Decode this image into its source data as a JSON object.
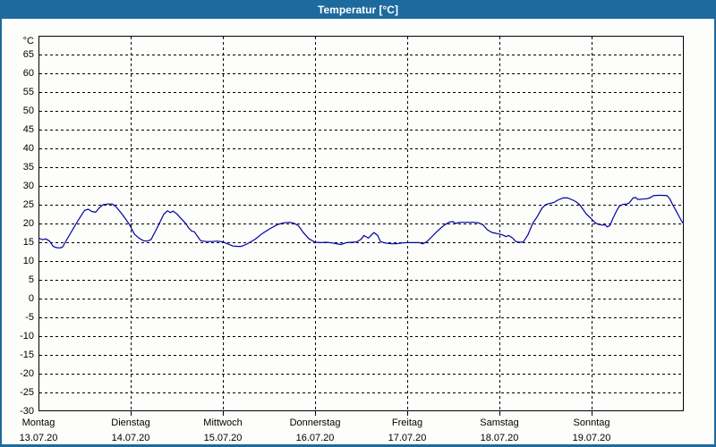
{
  "window": {
    "title": "Temperatur [°C]",
    "titlebar_color": "#1d6a9e",
    "border_color": "#1d6a9e",
    "background": "#fdfdfb"
  },
  "chart_data": {
    "type": "line",
    "title": "Temperatur [°C]",
    "grid": {
      "dashed": true,
      "color": "#000000",
      "shown": true
    },
    "legend_position": "none",
    "y_axis": {
      "unit_label": "°C",
      "min": -30,
      "max": 70,
      "ticks": [
        65,
        60,
        55,
        50,
        45,
        40,
        35,
        30,
        25,
        20,
        15,
        10,
        5,
        0,
        -5,
        -10,
        -15,
        -20,
        -25,
        -30
      ]
    },
    "x_axis": {
      "min_days": 0,
      "max_days": 7,
      "days": [
        {
          "name": "Montag",
          "date": "13.07.20"
        },
        {
          "name": "Dienstag",
          "date": "14.07.20"
        },
        {
          "name": "Mittwoch",
          "date": "15.07.20"
        },
        {
          "name": "Donnerstag",
          "date": "16.07.20"
        },
        {
          "name": "Freitag",
          "date": "17.07.20"
        },
        {
          "name": "Samstag",
          "date": "18.07.20"
        },
        {
          "name": "Sonntag",
          "date": "19.07.20"
        }
      ]
    },
    "series": [
      {
        "name": "Temperatur",
        "color": "#0000a0",
        "points": [
          [
            0.0,
            16.2
          ],
          [
            0.04,
            15.7
          ],
          [
            0.08,
            15.9
          ],
          [
            0.12,
            15.3
          ],
          [
            0.16,
            13.9
          ],
          [
            0.19,
            13.6
          ],
          [
            0.23,
            13.5
          ],
          [
            0.26,
            13.7
          ],
          [
            0.29,
            15.0
          ],
          [
            0.35,
            17.5
          ],
          [
            0.41,
            20.0
          ],
          [
            0.46,
            22.0
          ],
          [
            0.5,
            23.5
          ],
          [
            0.54,
            23.8
          ],
          [
            0.58,
            23.2
          ],
          [
            0.62,
            23.0
          ],
          [
            0.66,
            24.2
          ],
          [
            0.7,
            25.0
          ],
          [
            0.75,
            25.2
          ],
          [
            0.8,
            25.2
          ],
          [
            0.84,
            24.5
          ],
          [
            0.89,
            23.0
          ],
          [
            0.94,
            21.4
          ],
          [
            0.99,
            19.6
          ],
          [
            1.04,
            17.2
          ],
          [
            1.09,
            16.1
          ],
          [
            1.14,
            15.4
          ],
          [
            1.18,
            15.3
          ],
          [
            1.22,
            15.7
          ],
          [
            1.27,
            18.0
          ],
          [
            1.32,
            20.5
          ],
          [
            1.36,
            22.5
          ],
          [
            1.4,
            23.4
          ],
          [
            1.43,
            22.9
          ],
          [
            1.46,
            23.3
          ],
          [
            1.5,
            22.6
          ],
          [
            1.54,
            21.5
          ],
          [
            1.59,
            20.2
          ],
          [
            1.63,
            18.8
          ],
          [
            1.66,
            18.0
          ],
          [
            1.69,
            17.8
          ],
          [
            1.73,
            16.4
          ],
          [
            1.76,
            15.4
          ],
          [
            1.82,
            15.2
          ],
          [
            1.88,
            15.2
          ],
          [
            1.94,
            15.3
          ],
          [
            2.0,
            15.1
          ],
          [
            2.05,
            14.6
          ],
          [
            2.11,
            14.0
          ],
          [
            2.16,
            13.9
          ],
          [
            2.2,
            13.9
          ],
          [
            2.25,
            14.4
          ],
          [
            2.3,
            15.1
          ],
          [
            2.35,
            15.8
          ],
          [
            2.42,
            17.2
          ],
          [
            2.51,
            18.6
          ],
          [
            2.59,
            19.7
          ],
          [
            2.66,
            20.2
          ],
          [
            2.72,
            20.3
          ],
          [
            2.77,
            20.1
          ],
          [
            2.82,
            19.4
          ],
          [
            2.87,
            17.7
          ],
          [
            2.93,
            16.0
          ],
          [
            3.0,
            15.0
          ],
          [
            3.06,
            14.9
          ],
          [
            3.13,
            15.0
          ],
          [
            3.19,
            14.8
          ],
          [
            3.28,
            14.4
          ],
          [
            3.34,
            14.9
          ],
          [
            3.4,
            15.0
          ],
          [
            3.45,
            15.1
          ],
          [
            3.5,
            15.8
          ],
          [
            3.53,
            16.8
          ],
          [
            3.58,
            16.1
          ],
          [
            3.61,
            16.9
          ],
          [
            3.64,
            17.6
          ],
          [
            3.68,
            16.8
          ],
          [
            3.71,
            15.2
          ],
          [
            3.76,
            14.8
          ],
          [
            3.83,
            14.6
          ],
          [
            3.88,
            14.6
          ],
          [
            3.94,
            14.8
          ],
          [
            4.0,
            14.9
          ],
          [
            4.07,
            14.9
          ],
          [
            4.13,
            14.9
          ],
          [
            4.17,
            14.6
          ],
          [
            4.21,
            15.1
          ],
          [
            4.26,
            16.3
          ],
          [
            4.32,
            17.8
          ],
          [
            4.37,
            18.9
          ],
          [
            4.41,
            19.7
          ],
          [
            4.46,
            20.4
          ],
          [
            4.5,
            20.5
          ],
          [
            4.52,
            20.0
          ],
          [
            4.57,
            20.3
          ],
          [
            4.65,
            20.3
          ],
          [
            4.72,
            20.3
          ],
          [
            4.77,
            20.2
          ],
          [
            4.82,
            19.7
          ],
          [
            4.87,
            18.3
          ],
          [
            4.92,
            17.6
          ],
          [
            4.96,
            17.4
          ],
          [
            5.0,
            17.2
          ],
          [
            5.04,
            16.9
          ],
          [
            5.07,
            16.5
          ],
          [
            5.1,
            16.8
          ],
          [
            5.14,
            16.2
          ],
          [
            5.18,
            15.2
          ],
          [
            5.22,
            15.0
          ],
          [
            5.26,
            15.1
          ],
          [
            5.31,
            17.0
          ],
          [
            5.36,
            20.0
          ],
          [
            5.41,
            21.8
          ],
          [
            5.46,
            24.0
          ],
          [
            5.5,
            25.0
          ],
          [
            5.54,
            25.3
          ],
          [
            5.59,
            25.6
          ],
          [
            5.64,
            26.3
          ],
          [
            5.69,
            26.8
          ],
          [
            5.74,
            26.8
          ],
          [
            5.79,
            26.3
          ],
          [
            5.83,
            25.8
          ],
          [
            5.87,
            25.0
          ],
          [
            5.91,
            23.7
          ],
          [
            5.94,
            22.6
          ],
          [
            5.97,
            21.9
          ],
          [
            6.0,
            21.2
          ],
          [
            6.04,
            20.2
          ],
          [
            6.07,
            19.8
          ],
          [
            6.11,
            19.6
          ],
          [
            6.15,
            19.6
          ],
          [
            6.17,
            19.1
          ],
          [
            6.2,
            19.5
          ],
          [
            6.23,
            21.3
          ],
          [
            6.27,
            23.3
          ],
          [
            6.3,
            24.6
          ],
          [
            6.34,
            25.1
          ],
          [
            6.38,
            25.2
          ],
          [
            6.41,
            25.5
          ],
          [
            6.45,
            26.8
          ],
          [
            6.48,
            26.9
          ],
          [
            6.5,
            26.4
          ],
          [
            6.55,
            26.5
          ],
          [
            6.6,
            26.6
          ],
          [
            6.64,
            26.9
          ],
          [
            6.67,
            27.4
          ],
          [
            6.72,
            27.5
          ],
          [
            6.77,
            27.5
          ],
          [
            6.82,
            27.4
          ],
          [
            6.85,
            26.5
          ],
          [
            6.88,
            25.0
          ],
          [
            6.92,
            23.2
          ],
          [
            6.95,
            21.8
          ],
          [
            6.98,
            20.5
          ],
          [
            7.0,
            19.9
          ]
        ]
      }
    ]
  }
}
